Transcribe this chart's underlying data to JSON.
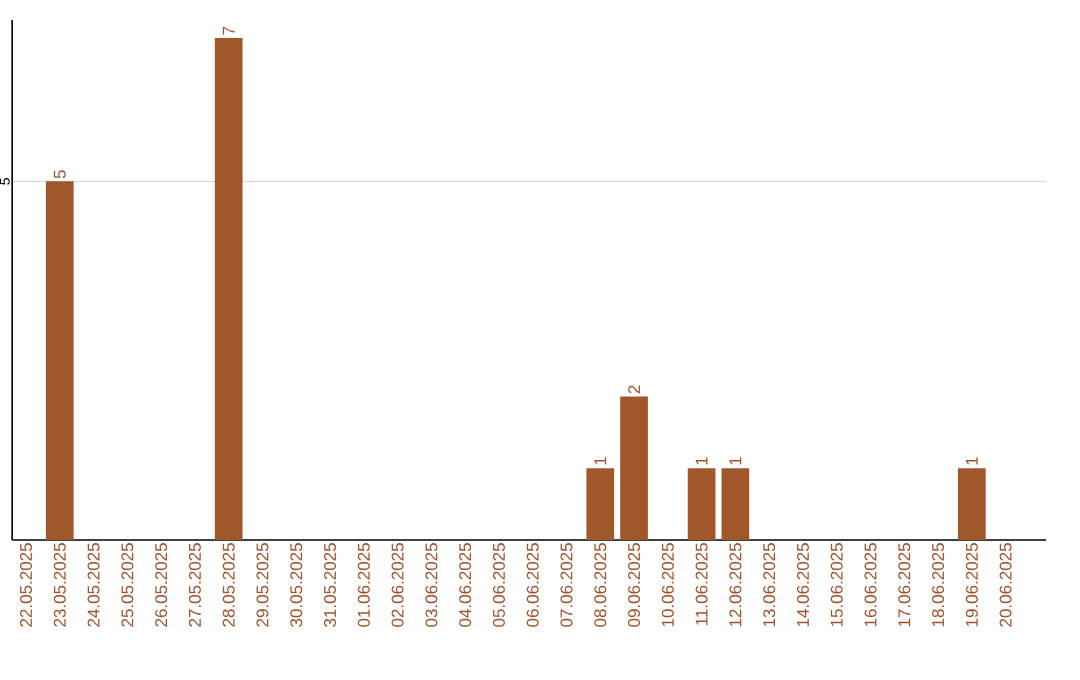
{
  "chart_data": {
    "type": "bar",
    "categories": [
      "22.05.2025",
      "23.05.2025",
      "24.05.2025",
      "25.05.2025",
      "26.05.2025",
      "27.05.2025",
      "28.05.2025",
      "29.05.2025",
      "30.05.2025",
      "31.05.2025",
      "01.06.2025",
      "02.06.2025",
      "03.06.2025",
      "04.06.2025",
      "05.06.2025",
      "06.06.2025",
      "07.06.2025",
      "08.06.2025",
      "09.06.2025",
      "10.06.2025",
      "11.06.2025",
      "12.06.2025",
      "13.06.2025",
      "14.06.2025",
      "15.06.2025",
      "16.06.2025",
      "17.06.2025",
      "18.06.2025",
      "19.06.2025",
      "20.06.2025"
    ],
    "values": [
      0,
      5,
      0,
      0,
      0,
      0,
      7,
      0,
      0,
      0,
      0,
      0,
      0,
      0,
      0,
      0,
      0,
      1,
      2,
      0,
      1,
      1,
      0,
      0,
      0,
      0,
      0,
      0,
      1,
      0
    ],
    "value_labels": [
      null,
      "5",
      null,
      null,
      null,
      null,
      "7",
      null,
      null,
      null,
      null,
      null,
      null,
      null,
      null,
      null,
      null,
      "1",
      "2",
      null,
      "1",
      "1",
      null,
      null,
      null,
      null,
      null,
      null,
      "1",
      null
    ],
    "color": "#a0582a",
    "ylim": [
      0,
      7.25
    ],
    "yticks": [
      5
    ],
    "grid": "y"
  }
}
